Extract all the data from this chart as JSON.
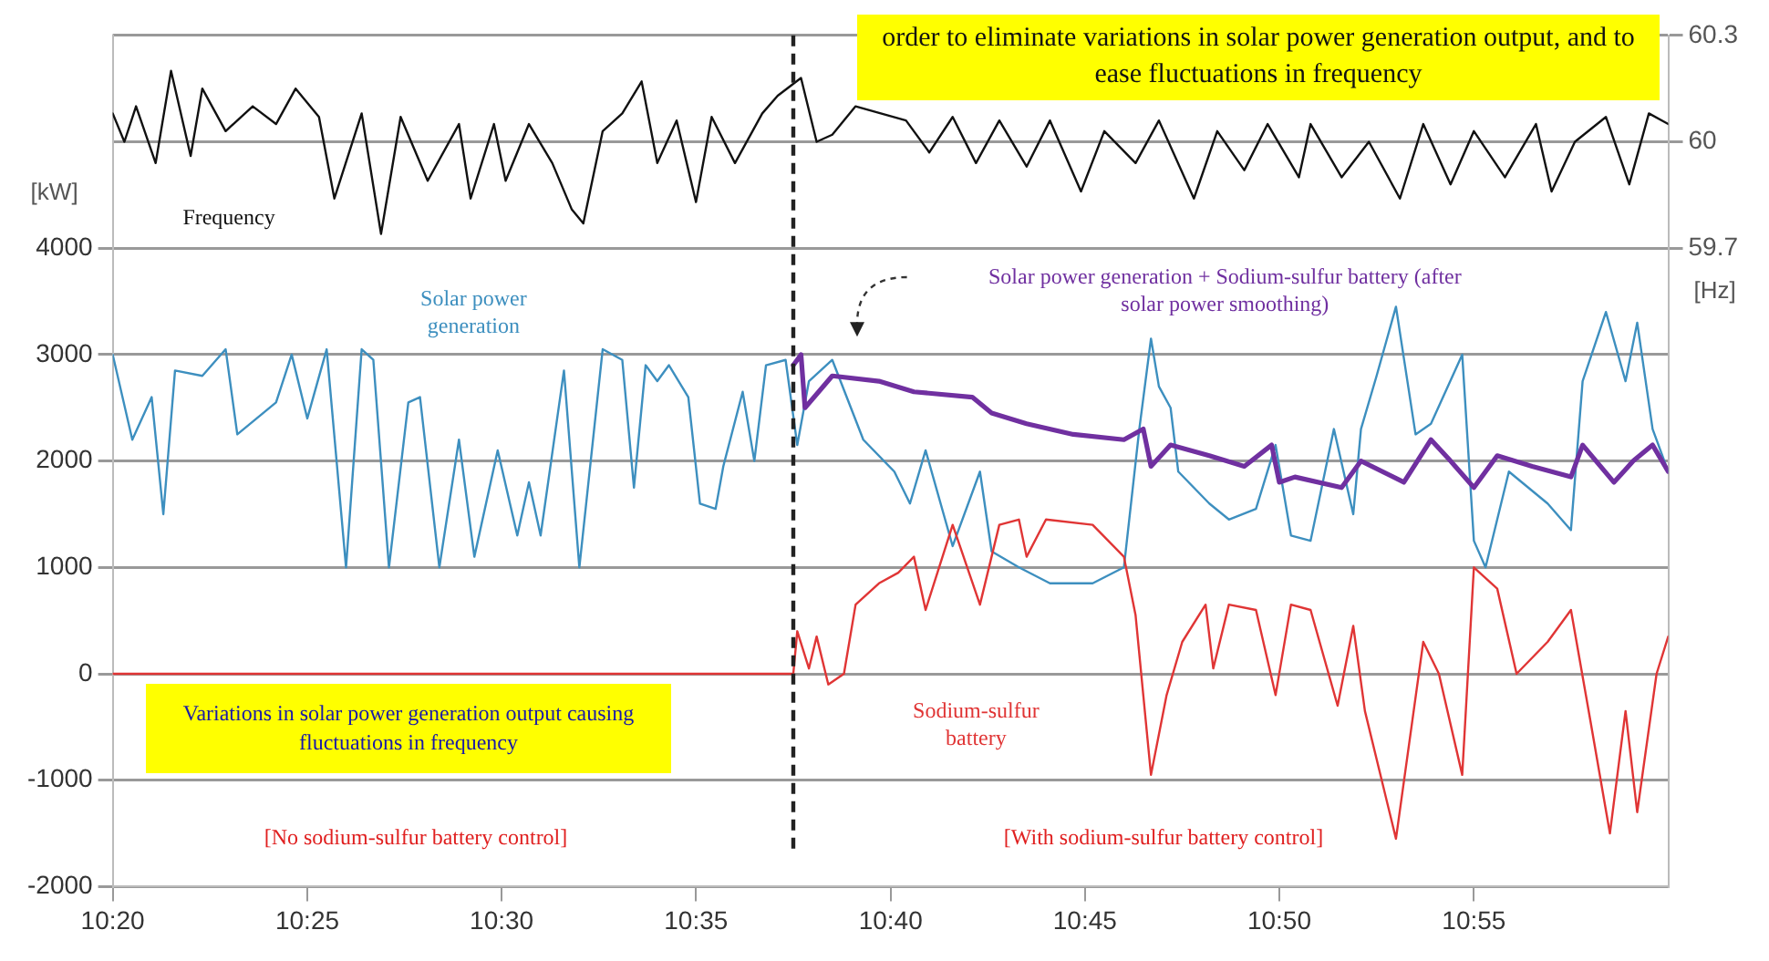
{
  "chart_data": {
    "type": "line",
    "ylabel": "[kW]",
    "y2label": "[Hz]",
    "xlim": [
      10.3333,
      11.0
    ],
    "xticks": [
      {
        "value": 10.3333,
        "label": "10:20"
      },
      {
        "value": 10.4167,
        "label": "10:25"
      },
      {
        "value": 10.5,
        "label": "10:30"
      },
      {
        "value": 10.5833,
        "label": "10:35"
      },
      {
        "value": 10.6667,
        "label": "10:40"
      },
      {
        "value": 10.75,
        "label": "10:45"
      },
      {
        "value": 10.8333,
        "label": "10:50"
      },
      {
        "value": 10.9167,
        "label": "10:55"
      }
    ],
    "ylim": [
      -2000,
      6000
    ],
    "yticks": [
      -2000,
      -1000,
      0,
      1000,
      2000,
      3000,
      4000
    ],
    "y2lim": [
      57.9,
      60.3
    ],
    "y2ticks": [
      59.7,
      60,
      60.3
    ],
    "grid": "y",
    "legend": false,
    "marker": "none",
    "line_style": "solid",
    "series": [
      {
        "name": "Frequency",
        "color": "#111111",
        "axis": "y2",
        "x": [
          10.3333,
          10.3383,
          10.3433,
          10.3517,
          10.3583,
          10.3667,
          10.3717,
          10.3817,
          10.3933,
          10.4033,
          10.4117,
          10.4217,
          10.4283,
          10.44,
          10.4483,
          10.4567,
          10.4683,
          10.4817,
          10.4867,
          10.4967,
          10.5017,
          10.5117,
          10.5217,
          10.53,
          10.535,
          10.5433,
          10.5517,
          10.56,
          10.5667,
          10.575,
          10.5833,
          10.59,
          10.6,
          10.6117,
          10.6183,
          10.6283,
          10.635,
          10.6417,
          10.6517,
          10.6733,
          10.6833,
          10.6933,
          10.7033,
          10.7133,
          10.725,
          10.735,
          10.7483,
          10.7583,
          10.7717,
          10.7817,
          10.7967,
          10.8067,
          10.8183,
          10.8283,
          10.8417,
          10.8467,
          10.86,
          10.8717,
          10.885,
          10.895,
          10.9067,
          10.9167,
          10.93,
          10.9433,
          10.95,
          10.96,
          10.9733,
          10.9833,
          10.9917,
          11.0
        ],
        "values": [
          60.08,
          60.0,
          60.1,
          59.94,
          60.2,
          59.96,
          60.15,
          60.03,
          60.1,
          60.05,
          60.15,
          60.07,
          59.84,
          60.08,
          59.74,
          60.07,
          59.89,
          60.05,
          59.84,
          60.05,
          59.89,
          60.05,
          59.94,
          59.81,
          59.77,
          60.03,
          60.08,
          60.17,
          59.94,
          60.06,
          59.83,
          60.07,
          59.94,
          60.08,
          60.13,
          60.18,
          60.0,
          60.02,
          60.1,
          60.06,
          59.97,
          60.07,
          59.94,
          60.06,
          59.93,
          60.06,
          59.86,
          60.03,
          59.94,
          60.06,
          59.84,
          60.03,
          59.92,
          60.05,
          59.9,
          60.05,
          59.9,
          60.0,
          59.84,
          60.05,
          59.88,
          60.03,
          59.9,
          60.05,
          59.86,
          60.0,
          60.07,
          59.88,
          60.08,
          60.05
        ]
      },
      {
        "name": "Solar power generation",
        "color": "#3d8fbf",
        "x": [
          10.3333,
          10.3417,
          10.35,
          10.355,
          10.36,
          10.3717,
          10.3817,
          10.3867,
          10.4033,
          10.41,
          10.4167,
          10.425,
          10.4333,
          10.44,
          10.445,
          10.4517,
          10.46,
          10.465,
          10.4733,
          10.4817,
          10.4883,
          10.4983,
          10.5067,
          10.5117,
          10.5167,
          10.5267,
          10.5333,
          10.5433,
          10.5517,
          10.5567,
          10.5617,
          10.5667,
          10.5717,
          10.58,
          10.585,
          10.5917,
          10.595,
          10.6033,
          10.6083,
          10.6133,
          10.6217,
          10.6267,
          10.6317,
          10.6417,
          10.655,
          10.6683,
          10.675,
          10.6817,
          10.6933,
          10.705,
          10.71,
          10.7217,
          10.735,
          10.7533,
          10.7667,
          10.7733,
          10.7783,
          10.7817,
          10.7867,
          10.79,
          10.8033,
          10.8117,
          10.8233,
          10.8317,
          10.8383,
          10.8467,
          10.8567,
          10.865,
          10.8683,
          10.875,
          10.8833,
          10.8917,
          10.8983,
          10.9117,
          10.9167,
          10.9217,
          10.9317,
          10.9483,
          10.9583,
          10.9633,
          10.9733,
          10.9817,
          10.9867,
          10.9933,
          11.0
        ],
        "values": [
          3000,
          2200,
          2600,
          1500,
          2850,
          2800,
          3050,
          2250,
          2550,
          3000,
          2400,
          3050,
          1000,
          3050,
          2950,
          1000,
          2550,
          2600,
          1000,
          2200,
          1100,
          2100,
          1300,
          1800,
          1300,
          2850,
          1000,
          3050,
          2950,
          1750,
          2900,
          2750,
          2900,
          2600,
          1600,
          1550,
          1950,
          2650,
          2000,
          2900,
          2950,
          2150,
          2750,
          2950,
          2200,
          1900,
          1600,
          2100,
          1200,
          1900,
          1150,
          1000,
          850,
          850,
          1000,
          2300,
          3150,
          2700,
          2500,
          1900,
          1600,
          1450,
          1550,
          2150,
          1300,
          1250,
          2300,
          1500,
          2300,
          2800,
          3450,
          2250,
          2350,
          3000,
          1250,
          1000,
          1900,
          1600,
          1350,
          2750,
          3400,
          2750,
          3300,
          2300,
          1900
        ]
      },
      {
        "name": "Sodium-sulfur battery",
        "color": "#e03535",
        "x": [
          10.3333,
          10.625,
          10.6267,
          10.6317,
          10.635,
          10.64,
          10.6467,
          10.6517,
          10.6617,
          10.67,
          10.6767,
          10.6817,
          10.6933,
          10.705,
          10.7133,
          10.7217,
          10.725,
          10.7333,
          10.7533,
          10.7667,
          10.7717,
          10.7783,
          10.785,
          10.7917,
          10.8017,
          10.805,
          10.8117,
          10.8233,
          10.8317,
          10.8383,
          10.8467,
          10.8583,
          10.865,
          10.87,
          10.8833,
          10.895,
          10.9017,
          10.9117,
          10.9167,
          10.9267,
          10.935,
          10.9483,
          10.9583,
          10.9667,
          10.975,
          10.9817,
          10.9867,
          10.995,
          11.0
        ],
        "values": [
          0,
          0,
          400,
          50,
          350,
          -100,
          0,
          650,
          850,
          950,
          1100,
          600,
          1400,
          650,
          1400,
          1450,
          1100,
          1450,
          1400,
          1100,
          550,
          -950,
          -200,
          300,
          650,
          50,
          650,
          600,
          -200,
          650,
          600,
          -300,
          450,
          -350,
          -1550,
          300,
          0,
          -950,
          1000,
          800,
          0,
          300,
          600,
          -450,
          -1500,
          -350,
          -1300,
          0,
          350
        ]
      },
      {
        "name": "Solar power generation + Sodium-sulfur battery (after solar power smoothing)",
        "color": "#7030a0",
        "x": [
          10.625,
          10.6283,
          10.63,
          10.6417,
          10.6617,
          10.6767,
          10.7017,
          10.71,
          10.725,
          10.745,
          10.7667,
          10.775,
          10.7783,
          10.7867,
          10.8033,
          10.8183,
          10.83,
          10.8333,
          10.84,
          10.86,
          10.8683,
          10.8867,
          10.8983,
          10.9067,
          10.9167,
          10.9267,
          10.9417,
          10.9583,
          10.9633,
          10.9767,
          10.985,
          10.9933,
          11.0
        ],
        "values": [
          2900,
          3000,
          2500,
          2800,
          2750,
          2650,
          2600,
          2450,
          2350,
          2250,
          2200,
          2300,
          1950,
          2150,
          2050,
          1950,
          2150,
          1800,
          1850,
          1750,
          2000,
          1800,
          2200,
          2000,
          1750,
          2050,
          1950,
          1850,
          2150,
          1800,
          2000,
          2150,
          1900
        ]
      }
    ],
    "ref_lines": [
      {
        "axis": "x",
        "value": 10.625,
        "color": "#222222",
        "line_style": "dashed"
      }
    ],
    "annotations": [
      "order to eliminate variations in solar power generation output, and to ease fluctuations in frequency",
      "Variations in solar power generation output causing fluctuations in frequency",
      "[No sodium-sulfur battery control]",
      "[With sodium-sulfur battery control]"
    ]
  }
}
